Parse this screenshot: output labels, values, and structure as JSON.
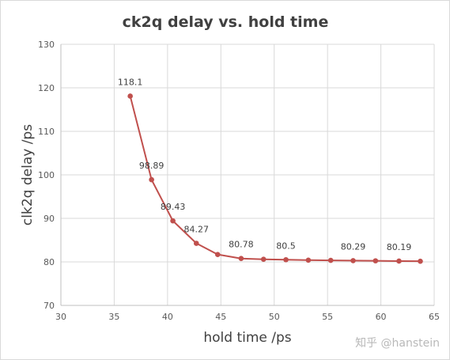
{
  "chart_data": {
    "type": "line",
    "title": "ck2q delay  vs. hold time",
    "xlabel": "hold time /ps",
    "ylabel": "clk2q delay /ps",
    "xlim": [
      30,
      65
    ],
    "ylim": [
      70,
      130
    ],
    "x_ticks": [
      30,
      35,
      40,
      45,
      50,
      55,
      60,
      65
    ],
    "y_ticks": [
      70,
      80,
      90,
      100,
      110,
      120,
      130
    ],
    "grid": true,
    "legend": "none",
    "series_color": "#c0504d",
    "series": [
      {
        "x": [
          36.5,
          38.5,
          40.5,
          42.7,
          44.7,
          46.9,
          49.0,
          51.1,
          53.2,
          55.3,
          57.4,
          59.5,
          61.7,
          63.7
        ],
        "values": [
          118.1,
          98.89,
          89.43,
          84.27,
          81.7,
          80.78,
          80.6,
          80.5,
          80.4,
          80.35,
          80.29,
          80.25,
          80.19,
          80.15
        ]
      }
    ],
    "data_labels": [
      {
        "point": 0,
        "text": "118.1"
      },
      {
        "point": 1,
        "text": "98.89"
      },
      {
        "point": 2,
        "text": "89.43"
      },
      {
        "point": 3,
        "text": "84.27"
      },
      {
        "point": 5,
        "text": "80.78"
      },
      {
        "point": 7,
        "text": "80.5"
      },
      {
        "point": 10,
        "text": "80.29"
      },
      {
        "point": 12,
        "text": "80.19"
      }
    ]
  },
  "watermark": "知乎 @hanstein"
}
